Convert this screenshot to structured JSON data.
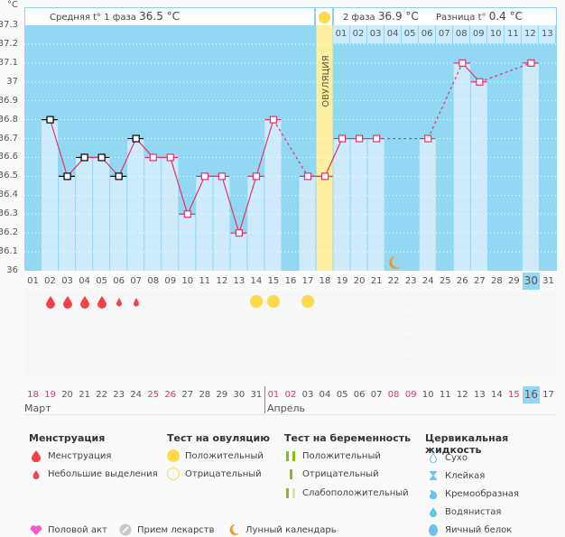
{
  "chart_data": {
    "type": "bar",
    "title": "",
    "ylabel": "°C",
    "ylim": [
      36.0,
      37.3
    ],
    "yticks": [
      "37.3",
      "37.2",
      "37.1",
      "37",
      "36.9",
      "36.8",
      "36.7",
      "36.6",
      "36.5",
      "36.4",
      "36.3",
      "36.2",
      "36.1",
      "36"
    ],
    "cycle_days": [
      "01",
      "02",
      "03",
      "04",
      "05",
      "06",
      "07",
      "08",
      "09",
      "10",
      "11",
      "12",
      "13",
      "14",
      "15",
      "16",
      "17",
      "18",
      "19",
      "20",
      "21",
      "22",
      "23",
      "24",
      "25",
      "26",
      "27",
      "28",
      "29",
      "30",
      "31"
    ],
    "temperatures": [
      null,
      36.8,
      36.5,
      36.6,
      36.6,
      36.5,
      36.7,
      36.6,
      36.6,
      36.3,
      36.5,
      36.5,
      36.2,
      36.5,
      36.8,
      null,
      36.5,
      36.5,
      36.7,
      36.7,
      36.7,
      null,
      null,
      36.7,
      null,
      37.1,
      37.0,
      null,
      null,
      37.1,
      null
    ],
    "black_markers": [
      2,
      3,
      4,
      5,
      6,
      7
    ],
    "ovulation_day": 18,
    "phase2_days": [
      "01",
      "02",
      "03",
      "04",
      "05",
      "06",
      "07",
      "08",
      "09",
      "10",
      "11",
      "12",
      "13"
    ],
    "current_cycle_day": 30,
    "lunar_day": 22,
    "menstruation": {
      "heavy": [
        2,
        3,
        4,
        5
      ],
      "light": [
        6,
        7
      ]
    },
    "ovulation_test_positive": [
      14,
      15,
      17
    ],
    "calendar_dates": [
      {
        "d": "18",
        "red": true
      },
      {
        "d": "19",
        "red": true
      },
      {
        "d": "20"
      },
      {
        "d": "21"
      },
      {
        "d": "22"
      },
      {
        "d": "23"
      },
      {
        "d": "24"
      },
      {
        "d": "25",
        "red": true
      },
      {
        "d": "26",
        "red": true
      },
      {
        "d": "27"
      },
      {
        "d": "28"
      },
      {
        "d": "29"
      },
      {
        "d": "30"
      },
      {
        "d": "31"
      },
      {
        "d": "01",
        "red": true
      },
      {
        "d": "02",
        "red": true
      },
      {
        "d": "03"
      },
      {
        "d": "04"
      },
      {
        "d": "05"
      },
      {
        "d": "06"
      },
      {
        "d": "07"
      },
      {
        "d": "08",
        "red": true
      },
      {
        "d": "09",
        "red": true
      },
      {
        "d": "10"
      },
      {
        "d": "11"
      },
      {
        "d": "12"
      },
      {
        "d": "13"
      },
      {
        "d": "14"
      },
      {
        "d": "15",
        "red": true
      },
      {
        "d": "16",
        "today": true
      },
      {
        "d": "17"
      }
    ],
    "months": [
      {
        "label": "Март",
        "start": 1
      },
      {
        "label": "Апрель",
        "start": 15
      }
    ]
  },
  "header": {
    "unit": "°C",
    "phase1_label": "Средняя t° 1 фаза",
    "phase1_value": "36.5 °C",
    "phase2_label": "2 фаза",
    "phase2_value": "36.9 °C",
    "diff_label": "Разница t°",
    "diff_value": "0.4 °C",
    "ovulation_label": "ОВУЛЯЦИЯ"
  },
  "legend": {
    "menstruation": {
      "title": "Менструация",
      "items": [
        "Менструация",
        "Небольшие выделения"
      ]
    },
    "ovulation_test": {
      "title": "Тест на овуляцию",
      "items": [
        "Положительный",
        "Отрицательный"
      ]
    },
    "pregnancy_test": {
      "title": "Тест на беременность",
      "items": [
        "Положительный",
        "Отрицательный",
        "Слабоположительный"
      ]
    },
    "cervical": {
      "title": "Цервикальная жидкость",
      "items": [
        "Сухо",
        "Клейкая",
        "Кремообразная",
        "Водянистая",
        "Яичный белок"
      ]
    },
    "bottom": [
      "Половой акт",
      "Прием лекарств",
      "Лунный календарь"
    ]
  },
  "colors": {
    "plot_bg": "#92d8f2",
    "bar": "#cdebfa",
    "ovulation": "#fdef9e",
    "line": "#e8316b",
    "drop": "#f2434b",
    "sun": "#fdd94b",
    "moon": "#f5961f",
    "green": "#8bbd1a",
    "today": "#92d8f2"
  }
}
